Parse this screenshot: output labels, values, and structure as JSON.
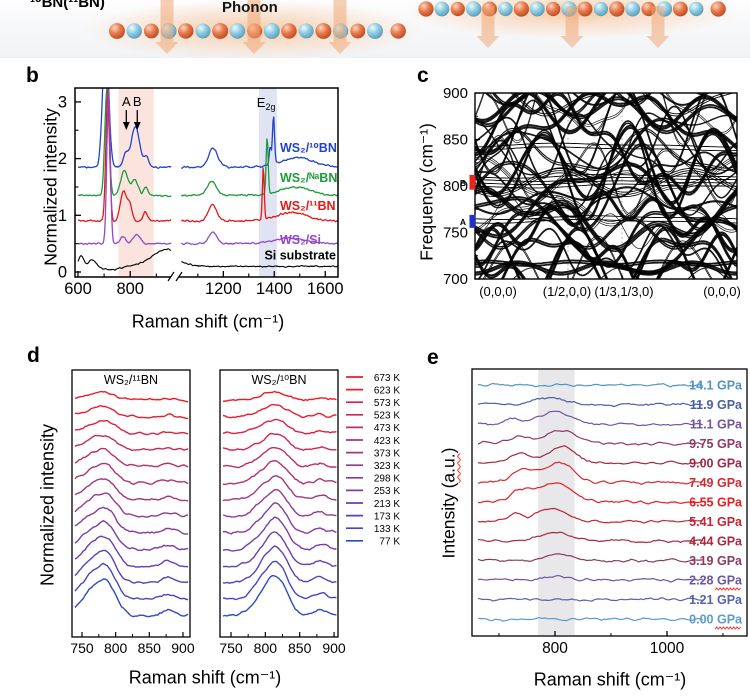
{
  "panels": {
    "a": {
      "isotope_label": "¹⁰BN(¹¹BN)",
      "phonon_label": "Phonon",
      "atom_colors": {
        "boron_orange": "#d95f3b",
        "nitrogen_blue": "#8ecde0"
      },
      "arrow_color": "#f0a877"
    },
    "b": {
      "letter": "b"
    },
    "c": {
      "letter": "c"
    },
    "d": {
      "letter": "d"
    },
    "e": {
      "letter": "e",
      "ylabel_pre": "Intensity (",
      "ylabel_au": "a.u.",
      "ylabel_post": ")"
    }
  },
  "chart_data": [
    {
      "id": "panel-b-raman-spectra",
      "type": "line",
      "xlabel": "Raman shift (cm⁻¹)",
      "ylabel": "Normalized intensity",
      "ylim": [
        0,
        3
      ],
      "yticks": [
        0,
        1,
        2,
        3
      ],
      "yticks_minor": [
        0.5,
        1.5,
        2.5
      ],
      "xticks_left": [
        600,
        800
      ],
      "xticks_minor_left": [
        700,
        900
      ],
      "xticks_right": [
        1200,
        1400,
        1600
      ],
      "xticks_minor_right": [
        1100,
        1300,
        1500
      ],
      "x_break": [
        960,
        1030
      ],
      "bands": [
        {
          "range": [
            755,
            890
          ],
          "color": "#fae4dd"
        },
        {
          "range": [
            1340,
            1410
          ],
          "color": "#dfe3f2"
        }
      ],
      "annotations": [
        {
          "label": "A",
          "x": 785
        },
        {
          "label": "B",
          "x": 827
        },
        {
          "label": "E",
          "sub": "2g",
          "x": 1368
        }
      ],
      "series": [
        {
          "name": "WS₂/¹⁰BN",
          "color": "#2244cc",
          "label_y": 2.12,
          "baseline": 1.85,
          "noise": 0.025,
          "peaks": [
            [
              706,
              2.5,
              11
            ],
            [
              782,
              0.22,
              10
            ],
            [
              820,
              0.72,
              16
            ],
            [
              862,
              0.18,
              8
            ],
            [
              1160,
              0.33,
              18
            ],
            [
              1384,
              0.32,
              4
            ],
            [
              1397,
              0.85,
              4
            ],
            [
              1490,
              0.17,
              60
            ]
          ]
        },
        {
          "name": "WS₂/ᴺᵃBN",
          "color": "#1f9b3c",
          "label_y": 1.59,
          "baseline": 1.35,
          "noise": 0.025,
          "peaks": [
            [
              711,
              1.9,
              8
            ],
            [
              778,
              0.45,
              14
            ],
            [
              818,
              0.28,
              12
            ],
            [
              860,
              0.15,
              8
            ],
            [
              1155,
              0.25,
              18
            ],
            [
              1372,
              1.0,
              4
            ],
            [
              1480,
              0.15,
              60
            ]
          ]
        },
        {
          "name": "WS₂/¹¹BN",
          "color": "#e51818",
          "label_y": 1.09,
          "baseline": 0.9,
          "noise": 0.025,
          "peaks": [
            [
              714,
              2.3,
              7
            ],
            [
              773,
              0.52,
              11
            ],
            [
              797,
              0.3,
              10
            ],
            [
              858,
              0.16,
              8
            ],
            [
              1158,
              0.3,
              16
            ],
            [
              1357,
              0.95,
              3.5
            ],
            [
              1470,
              0.15,
              60
            ]
          ]
        },
        {
          "name": "WS₂/Si",
          "color": "#9448c8",
          "label_y": 0.49,
          "baseline": 0.5,
          "noise": 0.02,
          "peaks": [
            [
              717,
              2.7,
              6.5
            ],
            [
              772,
              0.12,
              10
            ],
            [
              825,
              0.15,
              14
            ],
            [
              1158,
              0.2,
              16
            ],
            [
              1460,
              0.1,
              60
            ]
          ]
        },
        {
          "name": "Si substrate",
          "color": "#000000",
          "label_y": 0.22,
          "baseline": 0.1,
          "noise": 0.018,
          "label_pos": "right",
          "peaks": [
            [
              612,
              0.18,
              10
            ],
            [
              655,
              0.12,
              14
            ],
            [
              728,
              -0.06,
              35
            ],
            [
              945,
              0.3,
              60
            ]
          ]
        }
      ]
    },
    {
      "id": "panel-c-phonon-dispersion",
      "type": "line",
      "ylabel": "Frequency (cm⁻¹)",
      "ylim": [
        700,
        900
      ],
      "yticks": [
        700,
        750,
        800,
        850,
        900
      ],
      "xpath_labels": [
        "(0,0,0)",
        "(1/2,0,0)",
        "(1/3,1/3,0)",
        "(0,0,0)"
      ],
      "markers": [
        {
          "label": "B",
          "range": [
            796,
            812
          ],
          "color": "#e8241c"
        },
        {
          "label": "A",
          "range": [
            755,
            769
          ],
          "color": "#2230c8"
        }
      ],
      "description": "Dense calculated phonon dispersion bands between 700 and 900 cm⁻¹ with vertical dotted lines at (1/2,0,0) and (1/3,1/3,0)",
      "band_generator": {
        "seed": 7,
        "count": 40,
        "flat_bands": [
          800,
          803.5,
          807,
          810.5,
          762,
          766,
          840,
          844
        ]
      }
    },
    {
      "id": "panel-d-temperature-dependent-raman",
      "type": "line",
      "xlabel": "Raman shift (cm⁻¹)",
      "ylabel": "Normalized intensity",
      "xticks": [
        750,
        800,
        850,
        900
      ],
      "xticks_minor": [
        775,
        825,
        875
      ],
      "subpanels": [
        {
          "title": "WS₂/¹¹BN",
          "components": [
            [
              770,
              0.85,
              20
            ],
            [
              790,
              0.5,
              12
            ],
            [
              878,
              0.18,
              9
            ]
          ]
        },
        {
          "title": "WS₂/¹⁰BN",
          "components": [
            [
              800,
              0.6,
              16
            ],
            [
              820,
              0.9,
              14
            ],
            [
              880,
              0.2,
              9
            ]
          ]
        }
      ],
      "temperatures": [
        {
          "label": "673 K",
          "color": "#ed1c24"
        },
        {
          "label": "623 K",
          "color": "#e81e2e"
        },
        {
          "label": "573 K",
          "color": "#dd2140"
        },
        {
          "label": "523 K",
          "color": "#cf2751"
        },
        {
          "label": "473 K",
          "color": "#c02d62"
        },
        {
          "label": "423 K",
          "color": "#b13273"
        },
        {
          "label": "373 K",
          "color": "#a23684"
        },
        {
          "label": "323 K",
          "color": "#943a94"
        },
        {
          "label": "298 K",
          "color": "#873b9e"
        },
        {
          "label": "253 K",
          "color": "#7a3ca8"
        },
        {
          "label": "213 K",
          "color": "#683eb0"
        },
        {
          "label": "173 K",
          "color": "#5742b8"
        },
        {
          "label": "133 K",
          "color": "#4448be"
        },
        {
          "label": "77 K",
          "color": "#2a4cc0"
        }
      ]
    },
    {
      "id": "panel-e-pressure-dependent-raman",
      "type": "line",
      "xlabel": "Raman shift (cm⁻¹)",
      "ylabel": "Intensity (a.u.)",
      "xticks": [
        800,
        1000
      ],
      "xticks_minor": [
        700,
        900,
        1100
      ],
      "shaded_band": [
        770,
        835
      ],
      "pressures": [
        {
          "label": "14.1 GPa",
          "color": "#4e94c8",
          "peak": null
        },
        {
          "label": "11.9 GPa",
          "color": "#4b5fa5",
          "peak": [
            790,
            7,
            25
          ]
        },
        {
          "label": "11.1 GPa",
          "color": "#7055a0",
          "peak": [
            800,
            11,
            28
          ],
          "peak2": [
            725,
            5,
            15
          ]
        },
        {
          "label": "9.75 GPa",
          "color": "#8f3a68",
          "peak": [
            812,
            13,
            26
          ],
          "peak2": [
            735,
            7,
            18
          ]
        },
        {
          "label": "9.00 GPa",
          "color": "#a32844",
          "peak": [
            812,
            16,
            24
          ],
          "peak2": [
            740,
            9,
            18
          ]
        },
        {
          "label": "7.49 GPa",
          "color": "#d42a32",
          "peak": [
            806,
            20,
            26
          ],
          "peak2": [
            745,
            13,
            20
          ]
        },
        {
          "label": "6.55 GPa",
          "color": "#ea1c24",
          "peak": [
            800,
            19,
            30
          ],
          "peak2": [
            738,
            11,
            18
          ]
        },
        {
          "label": "5.41 GPa",
          "color": "#c22432",
          "peak": [
            796,
            13,
            26
          ],
          "peak2": [
            728,
            7,
            16
          ]
        },
        {
          "label": "4.44 GPa",
          "color": "#a92a40",
          "peak": [
            800,
            9,
            28
          ]
        },
        {
          "label": "3.19 GPa",
          "color": "#8c3a60",
          "peak": [
            806,
            7,
            24
          ]
        },
        {
          "label": "2.28 GPa",
          "color": "#6e55a2",
          "peak": [
            800,
            4,
            24
          ],
          "squiggle": true
        },
        {
          "label": "1.21 GPa",
          "color": "#5565a8",
          "peak": null
        },
        {
          "label": "0.00 GPa",
          "color": "#5b9bd0",
          "peak": null,
          "squiggle": true
        }
      ]
    }
  ]
}
